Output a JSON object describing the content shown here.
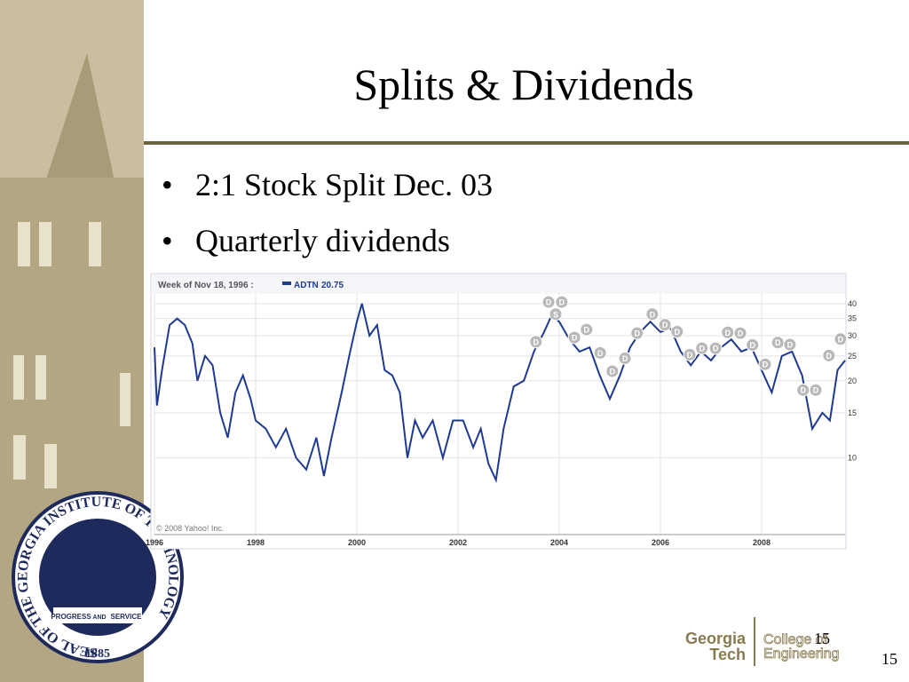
{
  "title": "Splits & Dividends",
  "bullets": [
    "2:1 Stock Split Dec. 03",
    "Quarterly dividends"
  ],
  "seal": {
    "ring": "SEAL OF THE GEORGIA INSTITUTE OF TECHNOLOGY",
    "year": "1885",
    "ribbon": [
      "PROGRESS",
      "AND",
      "SERVICE"
    ]
  },
  "footer": {
    "logo_left": [
      "Georgia",
      "Tech"
    ],
    "logo_right": [
      "College of",
      "Engineering"
    ],
    "slide_number": "15",
    "page_number": "15"
  },
  "chart_data": {
    "type": "line",
    "header": "Week of Nov 18, 1996 :",
    "current_value": 20.75,
    "copyright": "© 2008 Yahoo! Inc.",
    "yscale": "log",
    "grid": true,
    "xlim": [
      1996,
      2009.65
    ],
    "xticks": [
      1996,
      1998,
      2000,
      2002,
      2004,
      2006,
      2008
    ],
    "ylim": [
      5.1,
      44
    ],
    "yticks": [
      10,
      15,
      20,
      25,
      30,
      35,
      40
    ],
    "x": [
      1996.0,
      1996.05,
      1996.15,
      1996.3,
      1996.45,
      1996.6,
      1996.75,
      1996.85,
      1997.0,
      1997.15,
      1997.3,
      1997.45,
      1997.6,
      1997.75,
      1997.9,
      1998.0,
      1998.2,
      1998.4,
      1998.6,
      1998.8,
      1999.0,
      1999.2,
      1999.35,
      1999.5,
      1999.7,
      1999.85,
      2000.0,
      2000.1,
      2000.25,
      2000.4,
      2000.55,
      2000.7,
      2000.85,
      2001.0,
      2001.15,
      2001.3,
      2001.5,
      2001.7,
      2001.9,
      2002.1,
      2002.3,
      2002.45,
      2002.6,
      2002.75,
      2002.9,
      2003.1,
      2003.3,
      2003.5,
      2003.7,
      2003.85,
      2004.0,
      2004.2,
      2004.4,
      2004.6,
      2004.8,
      2005.0,
      2005.2,
      2005.4,
      2005.6,
      2005.8,
      2006.0,
      2006.2,
      2006.4,
      2006.6,
      2006.8,
      2007.0,
      2007.2,
      2007.4,
      2007.6,
      2007.8,
      2008.0,
      2008.2,
      2008.4,
      2008.6,
      2008.8,
      2009.0,
      2009.2,
      2009.35,
      2009.5,
      2009.65
    ],
    "series": [
      {
        "name": "ADTN",
        "color": "#1f3a93",
        "values": [
          27,
          16,
          22,
          33,
          35,
          33,
          28,
          20,
          25,
          23,
          15,
          12,
          18,
          21,
          17,
          14,
          13,
          11,
          13,
          10,
          9,
          12,
          8.5,
          12,
          18,
          25,
          34,
          40,
          30,
          33,
          22,
          21,
          18,
          10,
          14,
          12,
          14,
          10,
          14,
          14,
          11,
          13,
          9.5,
          8.2,
          13,
          19,
          20,
          26,
          31,
          36,
          34,
          29,
          26,
          27,
          21,
          17,
          21,
          27,
          31,
          34,
          31,
          32,
          26,
          23,
          26,
          24,
          27,
          29,
          26,
          27,
          22,
          18,
          25,
          26,
          21,
          13,
          15,
          14,
          22,
          24
        ]
      }
    ],
    "markers": [
      {
        "label": "D",
        "x": 2003.79,
        "y": 40.6
      },
      {
        "label": "D",
        "x": 2004.05,
        "y": 40.6
      },
      {
        "label": "S",
        "x": 2003.93,
        "y": 36.4
      },
      {
        "label": "D",
        "x": 2003.54,
        "y": 28.4
      },
      {
        "label": "D",
        "x": 2004.3,
        "y": 29.5
      },
      {
        "label": "D",
        "x": 2004.54,
        "y": 31.7
      },
      {
        "label": "D",
        "x": 2004.81,
        "y": 25.7
      },
      {
        "label": "D",
        "x": 2005.05,
        "y": 21.8
      },
      {
        "label": "D",
        "x": 2005.3,
        "y": 24.5
      },
      {
        "label": "D",
        "x": 2005.54,
        "y": 30.7
      },
      {
        "label": "D",
        "x": 2005.84,
        "y": 36.4
      },
      {
        "label": "D",
        "x": 2006.09,
        "y": 33.1
      },
      {
        "label": "D",
        "x": 2006.33,
        "y": 31.1
      },
      {
        "label": "D",
        "x": 2006.58,
        "y": 25.3
      },
      {
        "label": "D",
        "x": 2006.82,
        "y": 26.8
      },
      {
        "label": "D",
        "x": 2007.09,
        "y": 26.8
      },
      {
        "label": "D",
        "x": 2007.33,
        "y": 30.9
      },
      {
        "label": "D",
        "x": 2007.58,
        "y": 30.7
      },
      {
        "label": "D",
        "x": 2007.82,
        "y": 27.6
      },
      {
        "label": "D",
        "x": 2008.07,
        "y": 23.2
      },
      {
        "label": "D",
        "x": 2008.32,
        "y": 28.2
      },
      {
        "label": "D",
        "x": 2008.56,
        "y": 27.7
      },
      {
        "label": "D",
        "x": 2008.82,
        "y": 18.4
      },
      {
        "label": "D",
        "x": 2009.07,
        "y": 18.4
      },
      {
        "label": "D",
        "x": 2009.33,
        "y": 25.1
      },
      {
        "label": "D",
        "x": 2009.56,
        "y": 29.1
      }
    ]
  }
}
